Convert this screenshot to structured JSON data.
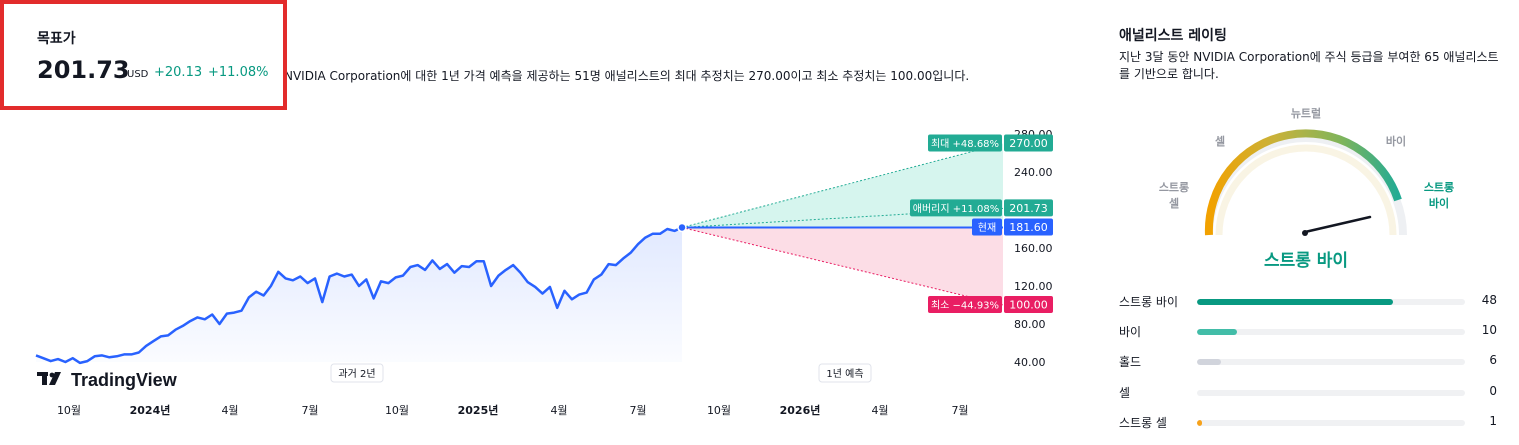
{
  "target": {
    "title": "목표가",
    "price": "201.73",
    "currency": "USD",
    "change": "+20.13",
    "change_pct": "+11.08%"
  },
  "description": "NVIDIA Corporation에 대한 1년 가격 예측을 제공하는 51명 애널리스트의 최대 추정치는 270.00이고 최소 추정치는 100.00입니다.",
  "colors": {
    "line": "#2962ff",
    "up": "#22ab94",
    "down": "#e91e63",
    "current": "#2962ff",
    "strong_buy": "#089981",
    "buy": "#22ab94",
    "hold": "#c9cbcf",
    "strong_sell": "#f7a21b"
  },
  "chart_data": {
    "type": "line",
    "x_ticks": [
      "10월",
      "2024년",
      "4월",
      "7월",
      "10월",
      "2025년",
      "4월",
      "7월",
      "10월",
      "2026년",
      "4월",
      "7월"
    ],
    "bold_ticks": [
      "2024년",
      "2025년",
      "2026년"
    ],
    "y_ticks": [
      "280.00",
      "240.00",
      "160.00",
      "120.00",
      "80.00",
      "40.00"
    ],
    "ylim": [
      40,
      280
    ],
    "series": [
      {
        "values": [
          47,
          44,
          41,
          43,
          40,
          44,
          39,
          41,
          46,
          47,
          45,
          46,
          48,
          48,
          50,
          57,
          62,
          67,
          68,
          74,
          78,
          83,
          87,
          85,
          90,
          80,
          91,
          92,
          94,
          108,
          114,
          110,
          120,
          135,
          128,
          126,
          130,
          123,
          128,
          103,
          130,
          133,
          130,
          132,
          120,
          127,
          107,
          125,
          123,
          129,
          131,
          140,
          142,
          137,
          147,
          138,
          143,
          134,
          141,
          140,
          146,
          146,
          120,
          131,
          137,
          142,
          134,
          124,
          119,
          112,
          119,
          97,
          115,
          106,
          111,
          113,
          127,
          132,
          143,
          142,
          149,
          155,
          164,
          171,
          175,
          175,
          180,
          178,
          181.6
        ]
      }
    ],
    "current": 181.6,
    "forecast": {
      "max": {
        "label": "최대 +48.68%",
        "value": "270.00"
      },
      "avg": {
        "label": "애버리지 +11.08%",
        "value": "201.73"
      },
      "cur": {
        "label": "현재",
        "value": "181.60"
      },
      "min": {
        "label": "최소 −44.93%",
        "value": "100.00"
      }
    },
    "past_label": "과거 2년",
    "forecast_label": "1년 예측",
    "logo": "TradingView"
  },
  "rating": {
    "title": "애널리스트 레이팅",
    "description": "지난 3달 동안 NVIDIA Corporation에 주식 등급을 부여한 65 애널리스트를 기반으로 합니다.",
    "gauge_labels": {
      "strong_sell_1": "스트롱",
      "strong_sell_2": "셀",
      "sell": "셀",
      "neutral": "뉴트럴",
      "buy": "바이",
      "strong_buy_1": "스트롱",
      "strong_buy_2": "바이"
    },
    "result": "스트롱 바이",
    "rows": [
      {
        "label": "스트롱 바이",
        "count": "48",
        "fraction": 0.73,
        "color": "#089981"
      },
      {
        "label": "바이",
        "count": "10",
        "fraction": 0.15,
        "color": "#42bda8"
      },
      {
        "label": "홀드",
        "count": "6",
        "fraction": 0.09,
        "color": "#d1d4dc"
      },
      {
        "label": "셀",
        "count": "0",
        "fraction": 0,
        "color": "#f7a21b"
      },
      {
        "label": "스트롱 셀",
        "count": "1",
        "fraction": 0.01,
        "color": "#f7a21b"
      }
    ]
  }
}
